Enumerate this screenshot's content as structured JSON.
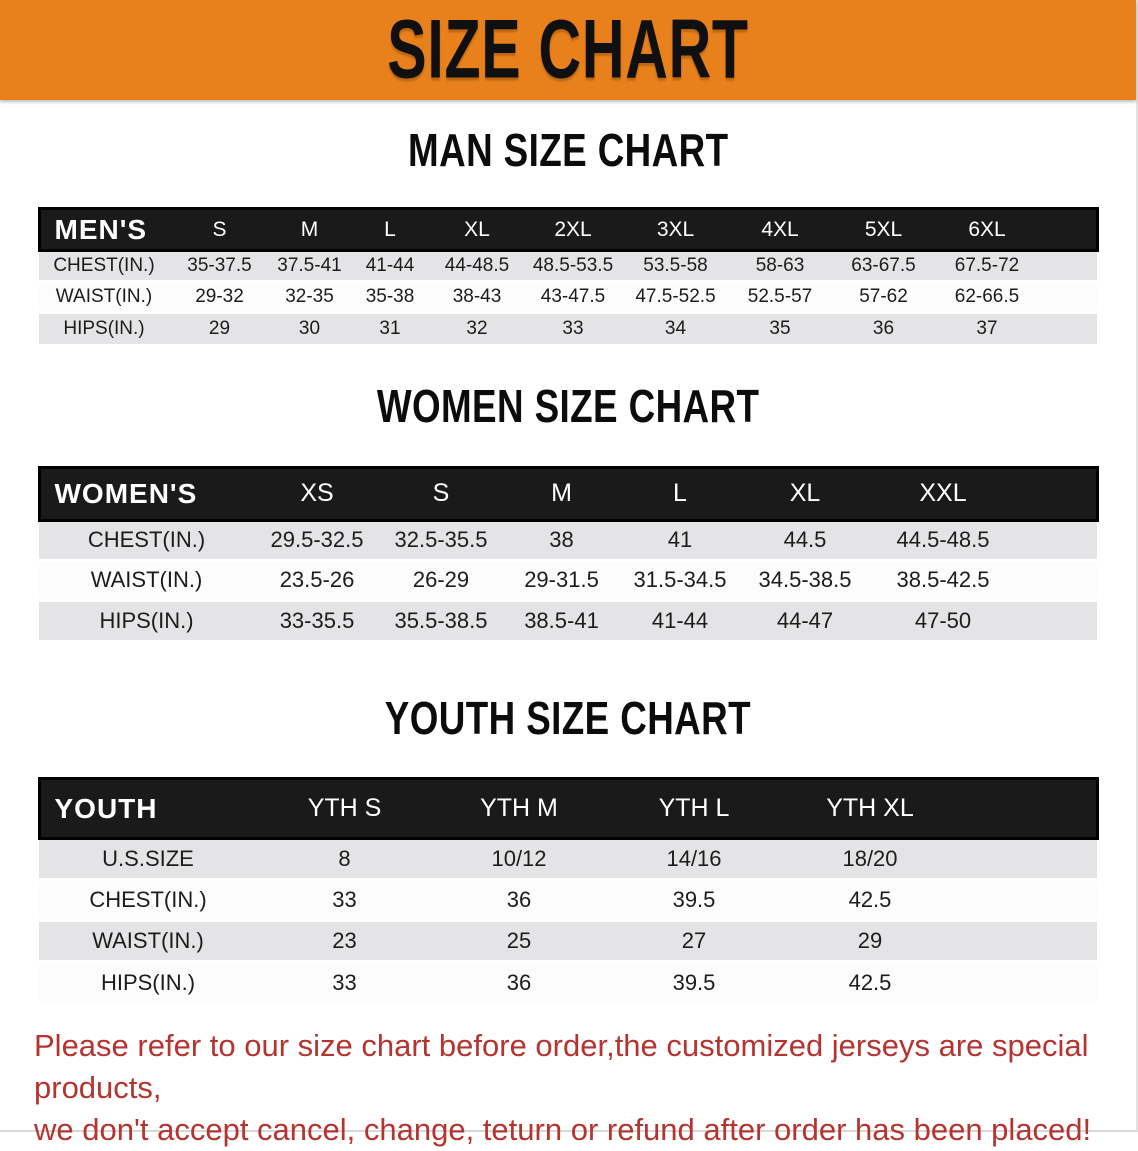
{
  "banner": {
    "title": "SIZE CHART"
  },
  "colors": {
    "banner_orange": "#E8811C",
    "table_header_bar": "#1A1A1A",
    "row_shade_gray": "#E4E4E6",
    "disclaimer_red": "#B5342F"
  },
  "sections": [
    {
      "heading": "MAN SIZE CHART",
      "table": {
        "header_label": "MEN'S",
        "sizes": [
          "S",
          "M",
          "L",
          "XL",
          "2XL",
          "3XL",
          "4XL",
          "5XL",
          "6XL"
        ],
        "rows": [
          {
            "label": "CHEST(IN.)",
            "values": [
              "35-37.5",
              "37.5-41",
              "41-44",
              "44-48.5",
              "48.5-53.5",
              "53.5-58",
              "58-63",
              "63-67.5",
              "67.5-72"
            ]
          },
          {
            "label": "WAIST(IN.)",
            "values": [
              "29-32",
              "32-35",
              "35-38",
              "38-43",
              "43-47.5",
              "47.5-52.5",
              "52.5-57",
              "57-62",
              "62-66.5"
            ]
          },
          {
            "label": "HIPS(IN.)",
            "values": [
              "29",
              "30",
              "31",
              "32",
              "33",
              "34",
              "35",
              "36",
              "37"
            ]
          }
        ]
      }
    },
    {
      "heading": "WOMEN SIZE CHART",
      "table": {
        "header_label": "WOMEN'S",
        "sizes": [
          "XS",
          "S",
          "M",
          "L",
          "XL",
          "XXL"
        ],
        "rows": [
          {
            "label": "CHEST(IN.)",
            "values": [
              "29.5-32.5",
              "32.5-35.5",
              "38",
              "41",
              "44.5",
              "44.5-48.5"
            ]
          },
          {
            "label": "WAIST(IN.)",
            "values": [
              "23.5-26",
              "26-29",
              "29-31.5",
              "31.5-34.5",
              "34.5-38.5",
              "38.5-42.5"
            ]
          },
          {
            "label": "HIPS(IN.)",
            "values": [
              "33-35.5",
              "35.5-38.5",
              "38.5-41",
              "41-44",
              "44-47",
              "47-50"
            ]
          }
        ]
      }
    },
    {
      "heading": "YOUTH SIZE CHART",
      "table": {
        "header_label": "YOUTH",
        "sizes": [
          "YTH S",
          "YTH M",
          "YTH L",
          "YTH XL"
        ],
        "rows": [
          {
            "label": "U.S.SIZE",
            "values": [
              "8",
              "10/12",
              "14/16",
              "18/20"
            ]
          },
          {
            "label": "CHEST(IN.)",
            "values": [
              "33",
              "36",
              "39.5",
              "42.5"
            ]
          },
          {
            "label": "WAIST(IN.)",
            "values": [
              "23",
              "25",
              "27",
              "29"
            ]
          },
          {
            "label": "HIPS(IN.)",
            "values": [
              "33",
              "36",
              "39.5",
              "42.5"
            ]
          }
        ]
      }
    }
  ],
  "disclaimer": {
    "line1": "Please refer to our size chart before order,the customized jerseys are special products,",
    "line2": "we don't accept cancel, change, teturn or refund after order has been placed!"
  }
}
